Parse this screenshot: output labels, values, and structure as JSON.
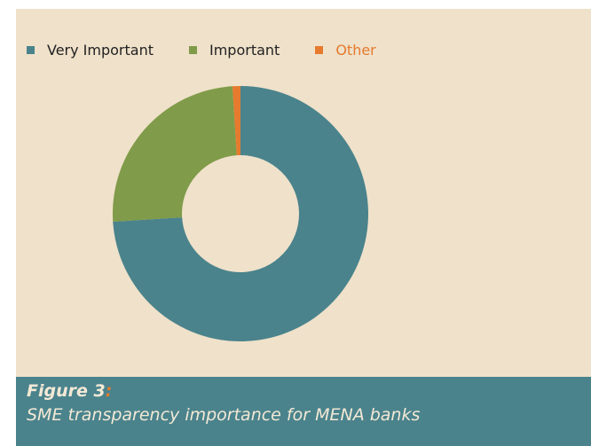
{
  "chart_data": {
    "type": "pie",
    "subtype": "donut",
    "categories": [
      "Very Important",
      "Important",
      "Other"
    ],
    "values": [
      74,
      25,
      1
    ],
    "unit": "%",
    "colors": {
      "Very Important": "#4a838c",
      "Important": "#809b49",
      "Other": "#e67a2e"
    },
    "legend": {
      "position": "top-left",
      "items": [
        {
          "label": "Very Important",
          "color": "#4a838c",
          "text_color": "#222222"
        },
        {
          "label": "Important",
          "color": "#809b49",
          "text_color": "#222222"
        },
        {
          "label": "Other",
          "color": "#e67a2e",
          "text_color": "#e67a2e"
        }
      ]
    }
  },
  "caption": {
    "figure_label": "Figure 3",
    "figure_colon": ":",
    "text": "SME transparency importance for MENA banks"
  },
  "theme": {
    "panel_background": "#efe1ca",
    "caption_background": "#4a838c",
    "caption_text_color": "#f3e9d6",
    "accent": "#e67a2e"
  }
}
